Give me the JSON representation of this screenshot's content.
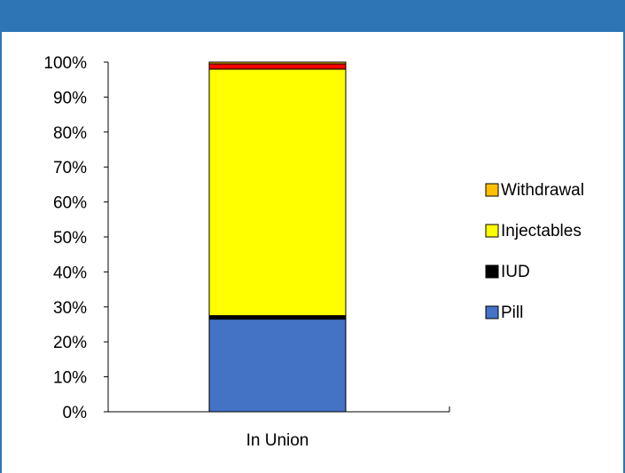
{
  "header": {
    "title": ""
  },
  "colors": {
    "header_bg": "#2e75b6",
    "Pill": "#4472c4",
    "IUD": "#000000",
    "Injectables": "#ffff00",
    "Withdrawal": "#ffc000",
    "top_segment": "#ff0000"
  },
  "chart_data": {
    "type": "bar",
    "stacked": true,
    "title": "",
    "xlabel": "",
    "ylabel": "",
    "ylim": [
      0,
      100
    ],
    "yticks": [
      "0%",
      "10%",
      "20%",
      "30%",
      "40%",
      "50%",
      "60%",
      "70%",
      "80%",
      "90%",
      "100%"
    ],
    "categories": [
      "In Union"
    ],
    "series": [
      {
        "name": "Pill",
        "values": [
          26.5
        ]
      },
      {
        "name": "IUD",
        "values": [
          1
        ]
      },
      {
        "name": "Injectables",
        "values": [
          70.5
        ]
      },
      {
        "name": "",
        "values": [
          1.5
        ]
      },
      {
        "name": "Withdrawal",
        "values": [
          0.5
        ]
      }
    ],
    "legend": {
      "position": "right",
      "entries": [
        "Withdrawal",
        "Injectables",
        "IUD",
        "Pill"
      ]
    },
    "grid": false
  }
}
